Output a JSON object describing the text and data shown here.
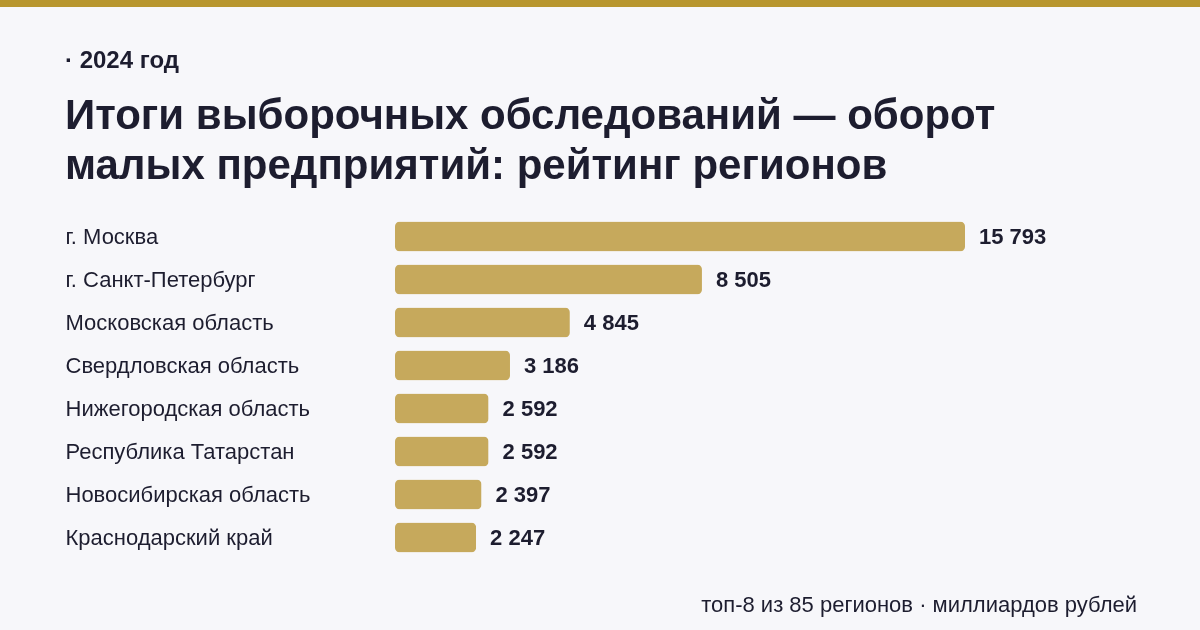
{
  "chart_data": {
    "type": "bar",
    "orientation": "horizontal",
    "subtitle": "· 2024 год",
    "title": "Итоги выборочных обследований — оборот малых предприятий: рейтинг регионов",
    "categories": [
      "г. Москва",
      "г. Санкт-Петербург",
      "Московская область",
      "Свердловская область",
      "Нижегородская область",
      "Республика Татарстан",
      "Новосибирская область",
      "Краснодарский край"
    ],
    "values": [
      15793,
      8505,
      4845,
      3186,
      2592,
      2592,
      2397,
      2247
    ],
    "value_labels": [
      "15 793",
      "8 505",
      "4 845",
      "3 186",
      "2 592",
      "2 592",
      "2 397",
      "2 247"
    ],
    "color": "#c6a95c",
    "annotations": [
      "топ-8 из 85 регионов · миллиардов рублей"
    ]
  }
}
